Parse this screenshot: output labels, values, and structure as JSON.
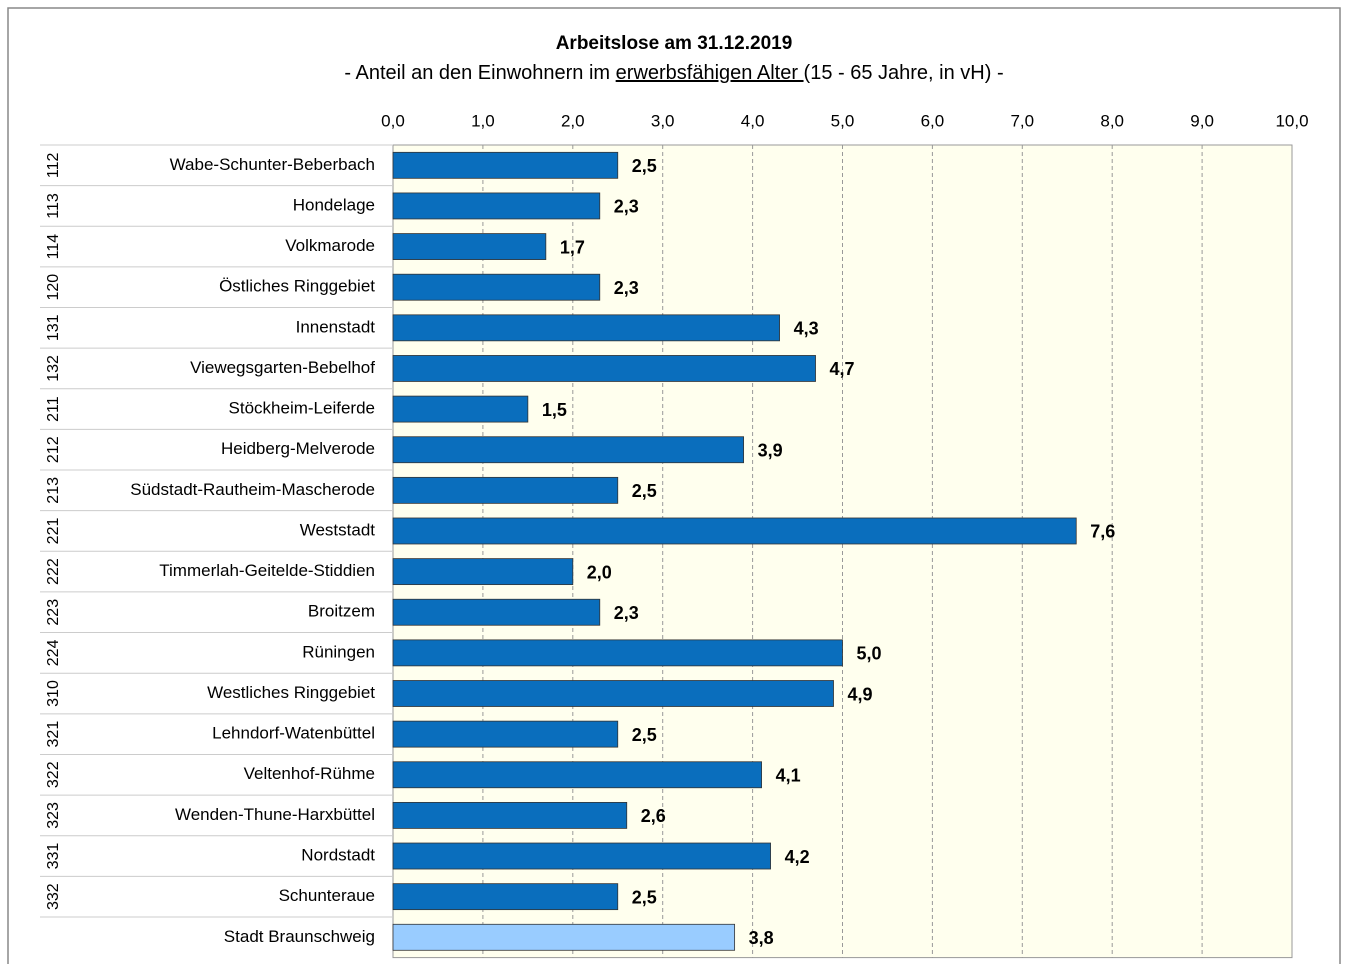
{
  "chart_data": {
    "type": "bar",
    "orientation": "horizontal",
    "title": "Arbeitslose am 31.12.2019",
    "subtitle": [
      "- Anteil an den Einwohnern im ",
      "erwerbsfähigen Alter ",
      "(15 - 65 Jahre, in vH) -"
    ],
    "codes": [
      "112",
      "113",
      "114",
      "120",
      "131",
      "132",
      "211",
      "212",
      "213",
      "221",
      "222",
      "223",
      "224",
      "310",
      "321",
      "322",
      "323",
      "331",
      "332",
      null
    ],
    "categories": [
      "Wabe-Schunter-Beberbach",
      "Hondelage",
      "Volkmarode",
      "Östliches Ringgebiet",
      "Innenstadt",
      "Viewegsgarten-Bebelhof",
      "Stöckheim-Leiferde",
      "Heidberg-Melverode",
      "Südstadt-Rautheim-Mascherode",
      "Weststadt",
      "Timmerlah-Geitelde-Stiddien",
      "Broitzem",
      "Rüningen",
      "Westliches Ringgebiet",
      "Lehndorf-Watenbüttel",
      "Veltenhof-Rühme",
      "Wenden-Thune-Harxbüttel",
      "Nordstadt",
      "Schunteraue",
      "Stadt Braunschweig"
    ],
    "values": [
      2.5,
      2.3,
      1.7,
      2.3,
      4.3,
      4.7,
      1.5,
      3.9,
      2.5,
      7.6,
      2.0,
      2.3,
      5.0,
      4.9,
      2.5,
      4.1,
      2.6,
      4.2,
      2.5,
      3.8
    ],
    "value_labels": [
      "2,5",
      "2,3",
      "1,7",
      "2,3",
      "4,3",
      "4,7",
      "1,5",
      "3,9",
      "2,5",
      "7,6",
      "2,0",
      "2,3",
      "5,0",
      "4,9",
      "2,5",
      "4,1",
      "2,6",
      "4,2",
      "2,5",
      "3,8"
    ],
    "colors": [
      "#0a6ebd",
      "#0a6ebd",
      "#0a6ebd",
      "#0a6ebd",
      "#0a6ebd",
      "#0a6ebd",
      "#0a6ebd",
      "#0a6ebd",
      "#0a6ebd",
      "#0a6ebd",
      "#0a6ebd",
      "#0a6ebd",
      "#0a6ebd",
      "#0a6ebd",
      "#0a6ebd",
      "#0a6ebd",
      "#0a6ebd",
      "#0a6ebd",
      "#0a6ebd",
      "#99ccff"
    ],
    "xlim": [
      0,
      10
    ],
    "xticks": [
      {
        "value": 0,
        "label": "0,0"
      },
      {
        "value": 1,
        "label": "1,0"
      },
      {
        "value": 2,
        "label": "2,0"
      },
      {
        "value": 3,
        "label": "3,0"
      },
      {
        "value": 4,
        "label": "4,0"
      },
      {
        "value": 5,
        "label": "5,0"
      },
      {
        "value": 6,
        "label": "6,0"
      },
      {
        "value": 7,
        "label": "7,0"
      },
      {
        "value": 8,
        "label": "8,0"
      },
      {
        "value": 9,
        "label": "9,0"
      },
      {
        "value": 10,
        "label": "10,0"
      }
    ],
    "grid": true
  }
}
